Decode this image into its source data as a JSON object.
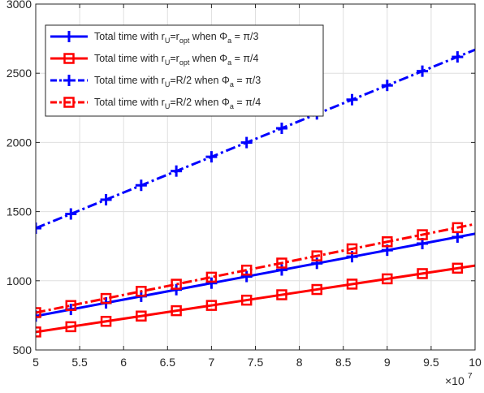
{
  "chart_data": {
    "type": "line",
    "title": "",
    "xlabel": "",
    "ylabel": "",
    "x_multiplier_label": "×10",
    "x_multiplier_exponent": "7",
    "xlim": [
      5,
      10
    ],
    "ylim": [
      500,
      3000
    ],
    "xticks": [
      "5",
      "5.5",
      "6",
      "6.5",
      "7",
      "7.5",
      "8",
      "8.5",
      "9",
      "9.5",
      "10"
    ],
    "yticks": [
      "500",
      "1000",
      "1500",
      "2000",
      "2500",
      "3000"
    ],
    "grid": true,
    "legend_position": "top-left",
    "marker_x": [
      5,
      5.4,
      5.8,
      6.2,
      6.6,
      7.0,
      7.4,
      7.8,
      8.2,
      8.6,
      9.0,
      9.4,
      9.8
    ],
    "series": [
      {
        "legend_parts": [
          "Total time with r",
          "U",
          "=r",
          "opt",
          " when Φ",
          "a",
          " = π/3"
        ],
        "legend_sub_flags": [
          false,
          true,
          false,
          true,
          false,
          true,
          false
        ],
        "color": "#0000ff",
        "line": "solid",
        "marker": "plus",
        "x": [
          5,
          10
        ],
        "y": [
          745,
          1340
        ],
        "marker_y": [
          745,
          793,
          840,
          888,
          936,
          983,
          1031,
          1078,
          1126,
          1174,
          1221,
          1269,
          1316
        ]
      },
      {
        "legend_parts": [
          "Total time with r",
          "U",
          "=r",
          "opt",
          " when Φ",
          "a",
          " = π/4"
        ],
        "legend_sub_flags": [
          false,
          true,
          false,
          true,
          false,
          true,
          false
        ],
        "color": "#ff0000",
        "line": "solid",
        "marker": "square",
        "x": [
          5,
          10
        ],
        "y": [
          630,
          1110
        ],
        "marker_y": [
          630,
          668,
          707,
          745,
          784,
          822,
          860,
          899,
          937,
          976,
          1014,
          1052,
          1091
        ]
      },
      {
        "legend_parts": [
          "Total time with r",
          "U",
          "=R/2 when Φ",
          "a",
          " = π/3"
        ],
        "legend_sub_flags": [
          false,
          true,
          false,
          true,
          false
        ],
        "color": "#0000ff",
        "line": "dashdot",
        "marker": "plus",
        "x": [
          5,
          10
        ],
        "y": [
          1380,
          2670
        ],
        "marker_y": [
          1380,
          1483,
          1586,
          1690,
          1793,
          1896,
          1999,
          2102,
          2206,
          2309,
          2412,
          2515,
          2618
        ]
      },
      {
        "legend_parts": [
          "Total time with r",
          "U",
          "=R/2 when Φ",
          "a",
          " = π/4"
        ],
        "legend_sub_flags": [
          false,
          true,
          false,
          true,
          false
        ],
        "color": "#ff0000",
        "line": "dashdot",
        "marker": "square",
        "x": [
          5,
          10
        ],
        "y": [
          770,
          1410
        ],
        "marker_y": [
          770,
          821,
          872,
          924,
          975,
          1026,
          1077,
          1128,
          1180,
          1231,
          1282,
          1333,
          1384
        ]
      }
    ]
  }
}
